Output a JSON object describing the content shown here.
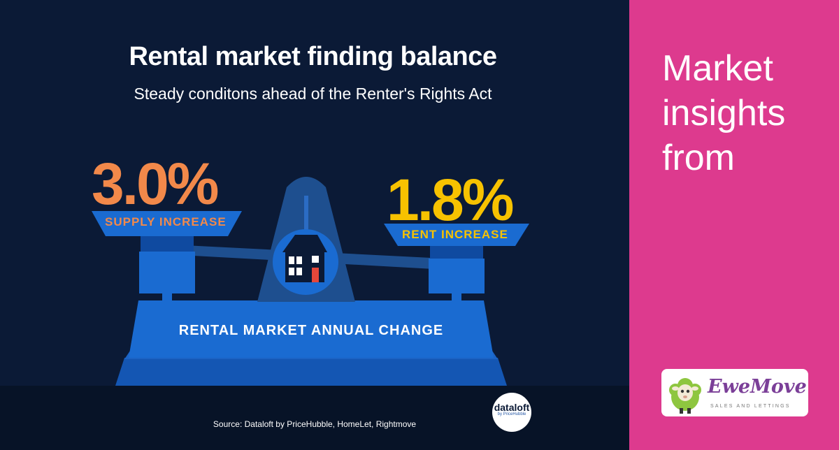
{
  "infographic": {
    "title": "Rental market finding balance",
    "subtitle": "Steady conditons ahead of the Renter's Rights Act",
    "supply": {
      "value": "3.0%",
      "label": "SUPPLY INCREASE"
    },
    "rent": {
      "value": "1.8%",
      "label": "RENT INCREASE"
    },
    "base_label": "RENTAL MARKET ANNUAL CHANGE",
    "source": "Source: Dataloft by PriceHubble, HomeLet, Rightmove",
    "dataloft_logo": {
      "name": "dataloft",
      "sub": "by PriceHubble"
    }
  },
  "sidebar": {
    "heading": "Market insights from",
    "brand": {
      "name_part1": "Ewe",
      "name_part2": "Move",
      "tagline": "SALES AND LETTINGS"
    }
  },
  "colors": {
    "navy": "#0b1a36",
    "scale_blue": "#1a6bd1",
    "supply_orange": "#f2894a",
    "rent_yellow": "#f7c200",
    "brand_pink": "#dd3a8e",
    "ewemove_green": "#8ec63f",
    "ewemove_purple": "#7b3f98"
  },
  "icons": [
    "balance-scale-icon",
    "house-icon",
    "dataloft-logo",
    "sheep-mascot-icon"
  ]
}
